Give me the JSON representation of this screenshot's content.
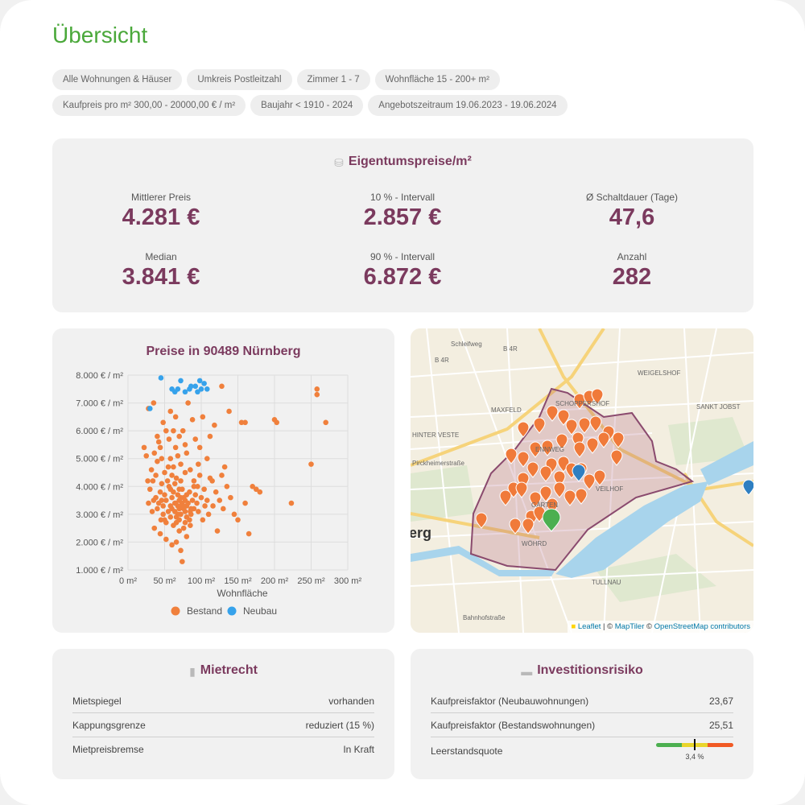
{
  "page_title": "Übersicht",
  "filters": [
    "Alle Wohnungen & Häuser",
    "Umkreis Postleitzahl",
    "Zimmer 1 - 7",
    "Wohnfläche 15 - 200+ m²",
    "Kaufpreis pro m² 300,00 - 20000,00 € / m²",
    "Baujahr < 1910 - 2024",
    "Angebotszeitraum 19.06.2023 - 19.06.2024"
  ],
  "prices": {
    "title": "Eigentumspreise/m²",
    "stats": [
      {
        "label": "Mittlerer Preis",
        "value": "4.281 €"
      },
      {
        "label": "10 % - Intervall",
        "value": "2.857 €"
      },
      {
        "label": "Ø Schaltdauer (Tage)",
        "value": "47,6"
      },
      {
        "label": "Median",
        "value": "3.841 €"
      },
      {
        "label": "90 % - Intervall",
        "value": "6.872 €"
      },
      {
        "label": "Anzahl",
        "value": "282"
      }
    ]
  },
  "chart_data": {
    "type": "scatter",
    "title": "Preise in 90489 Nürnberg",
    "xlabel": "Wohnfläche",
    "ylabel": "",
    "xlim": [
      0,
      300
    ],
    "ylim": [
      1000,
      8000
    ],
    "x_ticks": [
      "0 m²",
      "50 m²",
      "100 m²",
      "150 m²",
      "200 m²",
      "250 m²",
      "300 m²"
    ],
    "y_ticks": [
      "1.000 € / m²",
      "2.000 € / m²",
      "3.000 € / m²",
      "4.000 € / m²",
      "5.000 € / m²",
      "6.000 € / m²",
      "7.000 € / m²",
      "8.000 € / m²"
    ],
    "legend_position": "bottom",
    "grid": true,
    "series": [
      {
        "name": "Bestand",
        "color": "#f0803c",
        "points": [
          [
            65,
            3400
          ],
          [
            70,
            3200
          ],
          [
            72,
            3600
          ],
          [
            75,
            3300
          ],
          [
            78,
            3500
          ],
          [
            68,
            3000
          ],
          [
            80,
            3700
          ],
          [
            62,
            3800
          ],
          [
            85,
            3100
          ],
          [
            58,
            3300
          ],
          [
            66,
            2900
          ],
          [
            74,
            3900
          ],
          [
            82,
            3400
          ],
          [
            60,
            3600
          ],
          [
            70,
            2800
          ],
          [
            76,
            3200
          ],
          [
            88,
            3500
          ],
          [
            55,
            3100
          ],
          [
            64,
            4100
          ],
          [
            72,
            3000
          ],
          [
            78,
            2700
          ],
          [
            68,
            3700
          ],
          [
            80,
            3300
          ],
          [
            58,
            3900
          ],
          [
            62,
            2600
          ],
          [
            74,
            3400
          ],
          [
            86,
            3000
          ],
          [
            52,
            3500
          ],
          [
            90,
            3200
          ],
          [
            66,
            4300
          ],
          [
            70,
            3500
          ],
          [
            76,
            2500
          ],
          [
            84,
            3800
          ],
          [
            60,
            3200
          ],
          [
            56,
            4000
          ],
          [
            72,
            4200
          ],
          [
            78,
            3100
          ],
          [
            64,
            3400
          ],
          [
            80,
            2900
          ],
          [
            68,
            3300
          ],
          [
            50,
            3700
          ],
          [
            46,
            3500
          ],
          [
            42,
            3400
          ],
          [
            48,
            3000
          ],
          [
            44,
            3800
          ],
          [
            40,
            3200
          ],
          [
            38,
            3600
          ],
          [
            45,
            2800
          ],
          [
            52,
            2700
          ],
          [
            35,
            3500
          ],
          [
            30,
            3900
          ],
          [
            28,
            3400
          ],
          [
            32,
            4600
          ],
          [
            36,
            5200
          ],
          [
            40,
            4900
          ],
          [
            42,
            5600
          ],
          [
            46,
            5000
          ],
          [
            50,
            4500
          ],
          [
            38,
            4400
          ],
          [
            34,
            4200
          ],
          [
            55,
            4700
          ],
          [
            60,
            4400
          ],
          [
            65,
            5400
          ],
          [
            70,
            5800
          ],
          [
            68,
            5100
          ],
          [
            58,
            5000
          ],
          [
            72,
            4800
          ],
          [
            62,
            6000
          ],
          [
            78,
            5500
          ],
          [
            56,
            5700
          ],
          [
            48,
            6300
          ],
          [
            52,
            6000
          ],
          [
            44,
            5400
          ],
          [
            80,
            5200
          ],
          [
            75,
            6000
          ],
          [
            85,
            4600
          ],
          [
            90,
            4200
          ],
          [
            95,
            4000
          ],
          [
            100,
            3600
          ],
          [
            105,
            3300
          ],
          [
            110,
            3000
          ],
          [
            115,
            4200
          ],
          [
            120,
            3800
          ],
          [
            125,
            3500
          ],
          [
            130,
            3200
          ],
          [
            135,
            4000
          ],
          [
            140,
            3600
          ],
          [
            145,
            3000
          ],
          [
            150,
            2800
          ],
          [
            160,
            3400
          ],
          [
            165,
            2300
          ],
          [
            170,
            4000
          ],
          [
            175,
            3900
          ],
          [
            180,
            3800
          ],
          [
            98,
            4400
          ],
          [
            108,
            5000
          ],
          [
            112,
            5800
          ],
          [
            118,
            6200
          ],
          [
            102,
            6500
          ],
          [
            96,
            4800
          ],
          [
            88,
            6400
          ],
          [
            92,
            5700
          ],
          [
            82,
            7000
          ],
          [
            65,
            6500
          ],
          [
            58,
            6700
          ],
          [
            35,
            7000
          ],
          [
            28,
            6800
          ],
          [
            40,
            5800
          ],
          [
            25,
            5100
          ],
          [
            22,
            5400
          ],
          [
            27,
            4200
          ],
          [
            33,
            3100
          ],
          [
            36,
            2500
          ],
          [
            44,
            2300
          ],
          [
            52,
            2100
          ],
          [
            60,
            1900
          ],
          [
            66,
            2000
          ],
          [
            72,
            1700
          ],
          [
            70,
            2400
          ],
          [
            80,
            2200
          ],
          [
            85,
            2600
          ],
          [
            94,
            3400
          ],
          [
            102,
            2800
          ],
          [
            108,
            3500
          ],
          [
            116,
            3300
          ],
          [
            122,
            2400
          ],
          [
            128,
            4400
          ],
          [
            132,
            4700
          ],
          [
            128,
            7600
          ],
          [
            138,
            6700
          ],
          [
            155,
            6300
          ],
          [
            160,
            6300
          ],
          [
            200,
            6400
          ],
          [
            203,
            6300
          ],
          [
            223,
            3400
          ],
          [
            250,
            4800
          ],
          [
            258,
            7300
          ],
          [
            258,
            7500
          ],
          [
            270,
            6300
          ],
          [
            98,
            5400
          ],
          [
            74,
            1300
          ],
          [
            90,
            4000
          ],
          [
            86,
            3200
          ],
          [
            78,
            4500
          ],
          [
            62,
            4700
          ],
          [
            54,
            4200
          ],
          [
            48,
            3300
          ],
          [
            70,
            3900
          ],
          [
            76,
            3600
          ],
          [
            84,
            2800
          ],
          [
            66,
            2700
          ],
          [
            58,
            2900
          ],
          [
            92,
            3700
          ],
          [
            96,
            3100
          ],
          [
            104,
            3900
          ],
          [
            112,
            4300
          ],
          [
            50,
            2800
          ],
          [
            46,
            4100
          ],
          [
            64,
            3100
          ],
          [
            72,
            3300
          ]
        ]
      },
      {
        "name": "Neubau",
        "color": "#36a2eb",
        "points": [
          [
            45,
            7900
          ],
          [
            60,
            7500
          ],
          [
            64,
            7400
          ],
          [
            68,
            7500
          ],
          [
            72,
            7800
          ],
          [
            78,
            7400
          ],
          [
            84,
            7500
          ],
          [
            86,
            7600
          ],
          [
            92,
            7600
          ],
          [
            95,
            7400
          ],
          [
            98,
            7800
          ],
          [
            100,
            7500
          ],
          [
            104,
            7700
          ],
          [
            108,
            7500
          ],
          [
            30,
            6800
          ]
        ]
      }
    ]
  },
  "map": {
    "labels": [
      "Schleifweg",
      "B 4R",
      "B 4R",
      "WEIGELSHOF",
      "MAXFELD",
      "SCHOPPERSHOF",
      "SANKT JOBST",
      "HINTER VESTE",
      "Pirckheimerstraße",
      "ENNWEG",
      "GÄRTEN",
      "VEILHOF",
      "erg",
      "WÖHRD",
      "TULLNAU",
      "Bahnhofstraße"
    ],
    "attribution_leaflet": "Leaflet",
    "attribution_sep1": " | © ",
    "attribution_maptiler": "MapTiler",
    "attribution_sep2": " © ",
    "attribution_osm": "OpenStreetMap contributors"
  },
  "mietrecht": {
    "title": "Mietrecht",
    "rows": [
      {
        "label": "Mietspiegel",
        "value": "vorhanden"
      },
      {
        "label": "Kappungsgrenze",
        "value": "reduziert (15 %)"
      },
      {
        "label": "Mietpreisbremse",
        "value": "In Kraft"
      }
    ]
  },
  "risk": {
    "title": "Investitionsrisiko",
    "rows": [
      {
        "label": "Kaufpreisfaktor (Neubauwohnungen)",
        "value": "23,67"
      },
      {
        "label": "Kaufpreisfaktor (Bestandswohnungen)",
        "value": "25,51"
      },
      {
        "label": "Leerstandsquote",
        "value": "3,4 %"
      }
    ],
    "vacancy_fraction": 0.5,
    "gauge_colors": [
      "#4caf50",
      "#e9d52b",
      "#f15a24"
    ]
  }
}
